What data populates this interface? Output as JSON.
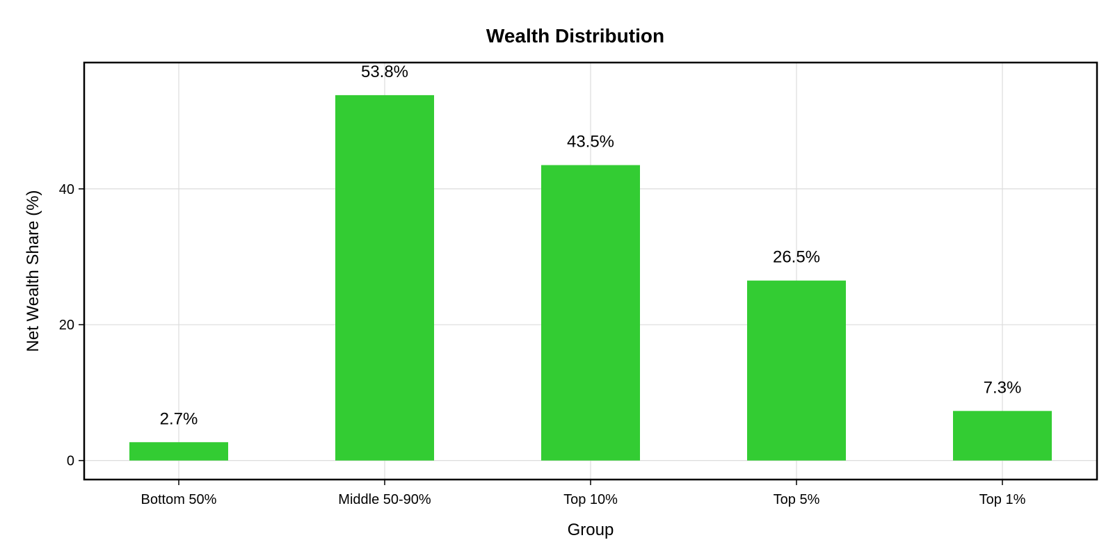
{
  "chart_data": {
    "type": "bar",
    "title": "Wealth Distribution",
    "xlabel": "Group",
    "ylabel": "Net Wealth Share (%)",
    "categories": [
      "Bottom 50%",
      "Middle 50-90%",
      "Top 10%",
      "Top 5%",
      "Top 1%"
    ],
    "values": [
      2.7,
      53.8,
      43.5,
      26.5,
      7.3
    ],
    "data_labels": [
      "2.7%",
      "53.8%",
      "43.5%",
      "26.5%",
      "7.3%"
    ],
    "yticks": [
      0,
      20,
      40
    ],
    "ylim": [
      -2.8,
      58.6
    ],
    "grid": true,
    "bar_color": "#33cc33"
  }
}
